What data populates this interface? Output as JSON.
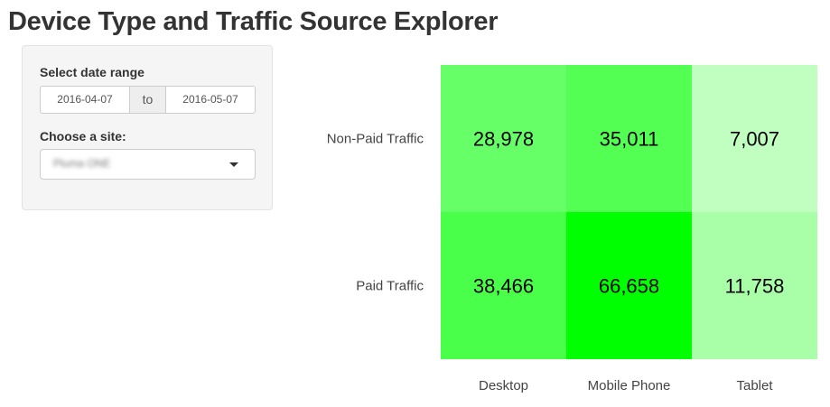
{
  "header": {
    "title": "Device Type and Traffic Source Explorer"
  },
  "sidebar": {
    "date_range_label": "Select date range",
    "date_start": "2016-04-07",
    "date_separator": "to",
    "date_end": "2016-05-07",
    "site_label": "Choose a site:",
    "site_value": "Pluma ONE"
  },
  "chart_data": {
    "type": "heatmap",
    "x_categories": [
      "Desktop",
      "Mobile Phone",
      "Tablet"
    ],
    "y_categories": [
      "Non-Paid Traffic",
      "Paid Traffic"
    ],
    "values": [
      [
        28978,
        35011,
        7007
      ],
      [
        38466,
        66658,
        11758
      ]
    ],
    "value_labels": [
      [
        "28,978",
        "35,011",
        "7,007"
      ],
      [
        "38,466",
        "66,658",
        "11,758"
      ]
    ],
    "color_low": "#ffffff",
    "color_high": "#00ff00",
    "grid": false,
    "legend": "none"
  }
}
